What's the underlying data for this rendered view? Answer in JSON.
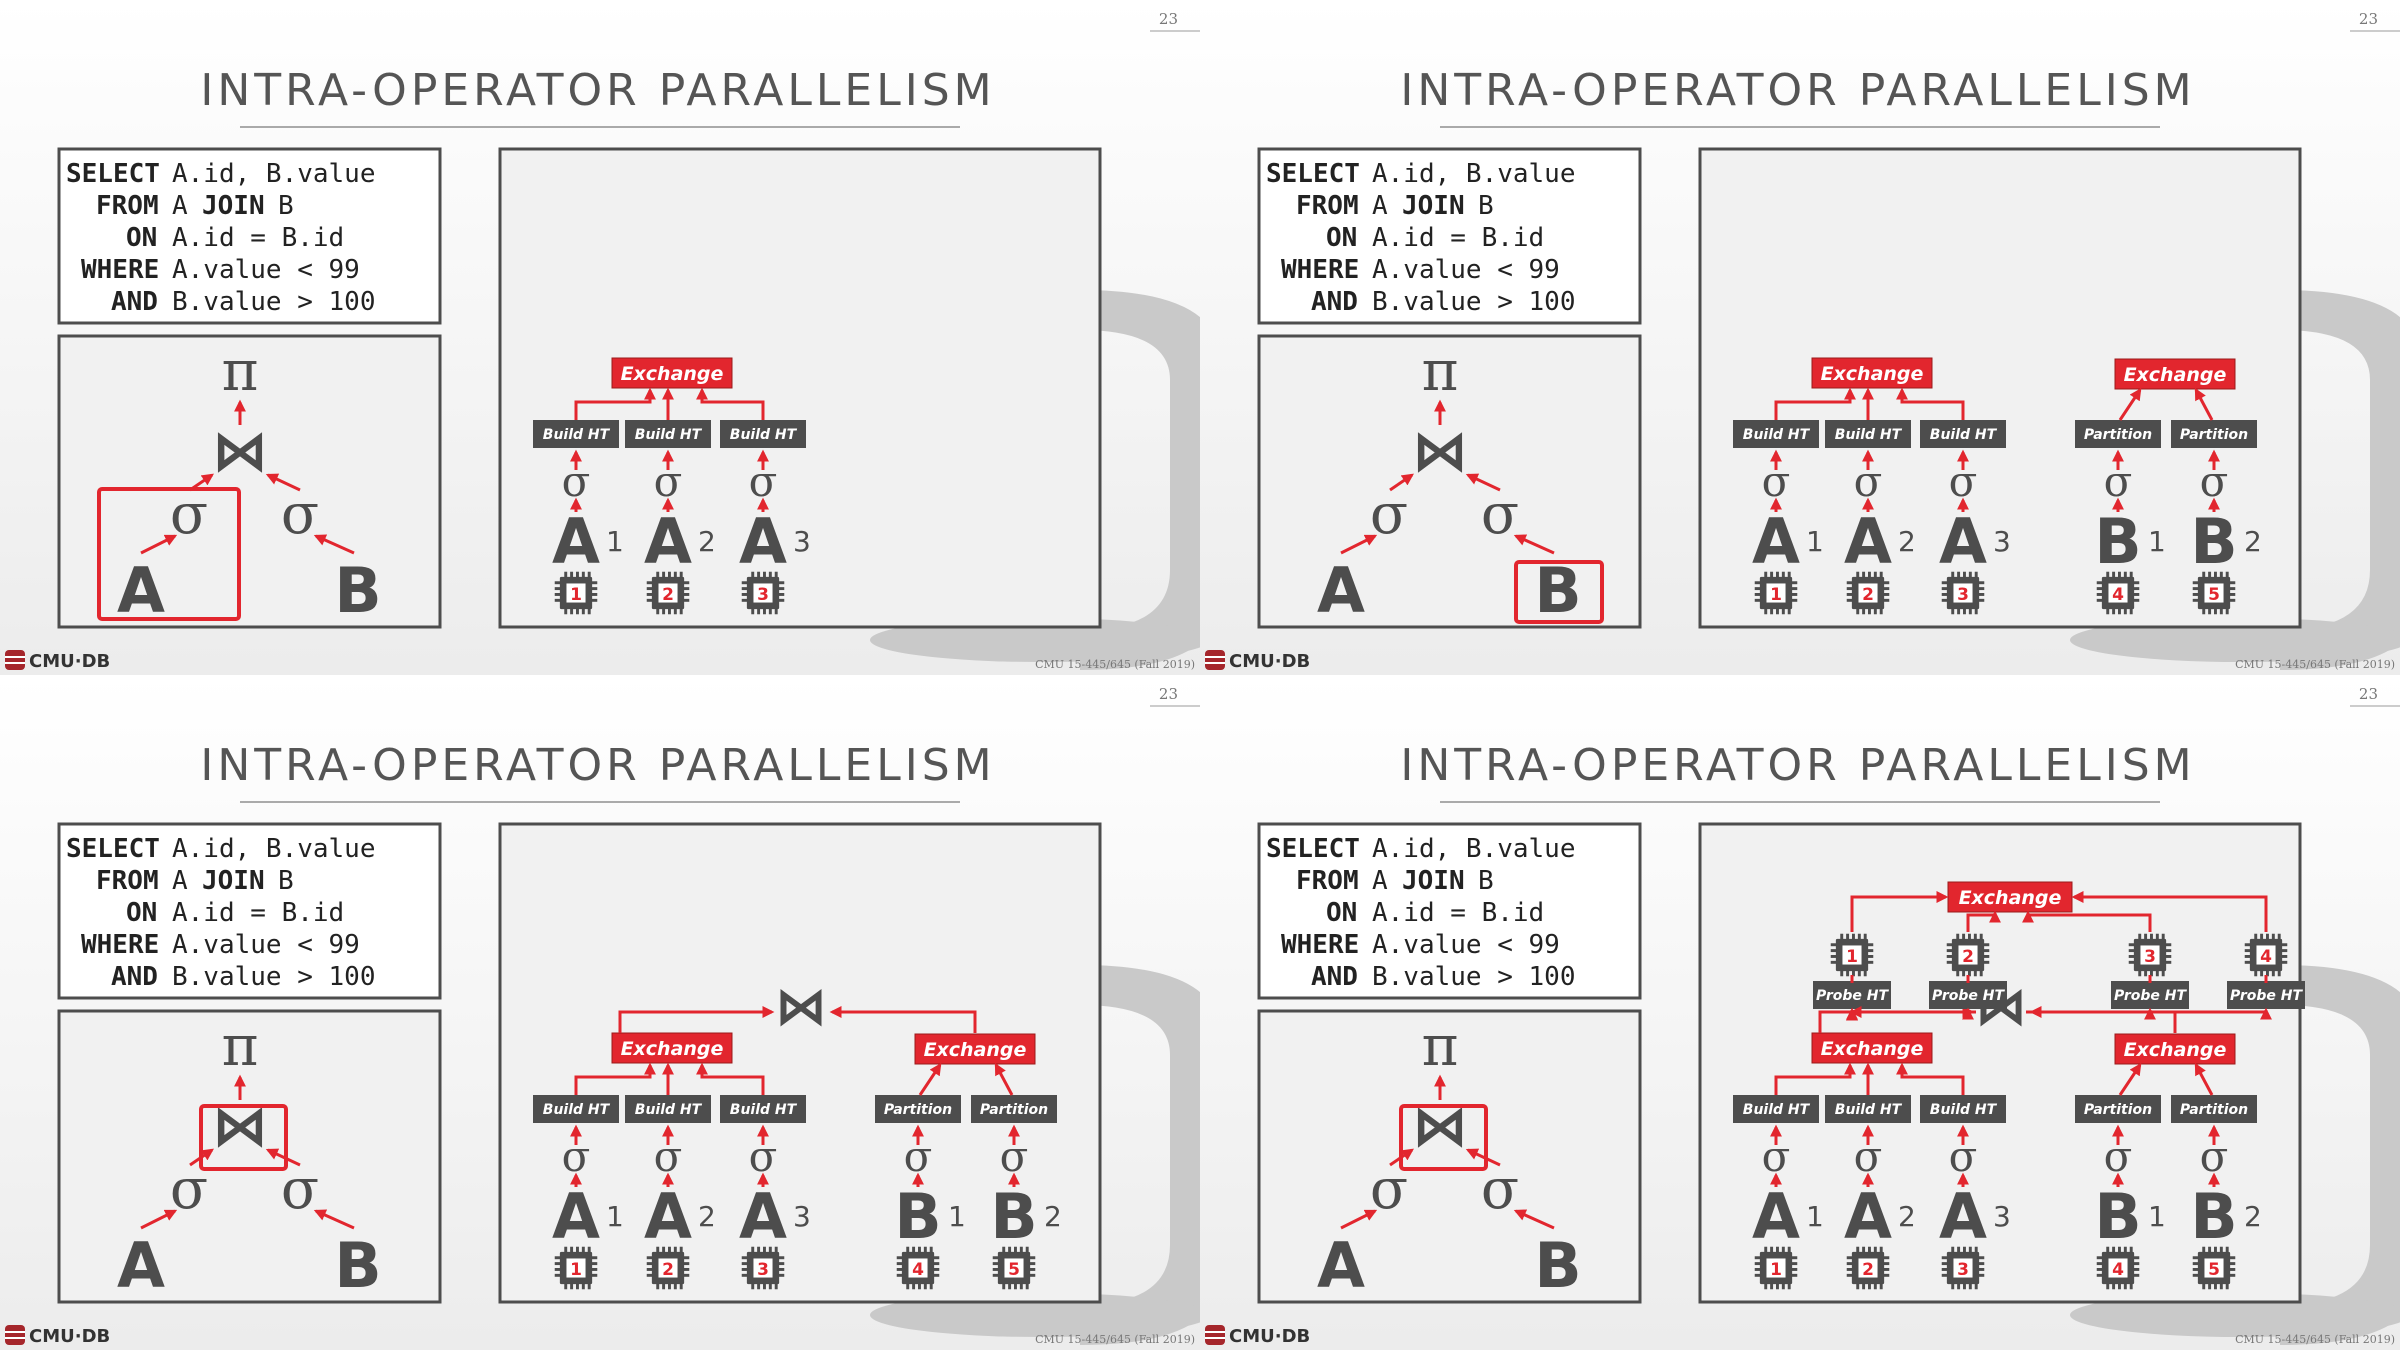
{
  "slide": {
    "page_number": "23",
    "title": "INTRA-OPERATOR PARALLELISM",
    "logo_text": "CMU·DB",
    "footer": "CMU 15-445/645 (Fall 2019)"
  },
  "sql": {
    "kw_select": "SELECT",
    "rest_select": "A.id, B.value",
    "kw_from": "FROM",
    "rest_from_a": "A",
    "kw_join": "JOIN",
    "rest_from_b": "B",
    "kw_on": "ON",
    "rest_on": "A.id = B.id",
    "kw_where": "WHERE",
    "rest_where": "A.value < 99",
    "kw_and": "AND",
    "rest_and": "B.value > 100"
  },
  "plan": {
    "projection": "π",
    "join": "⋈",
    "selection": "σ",
    "table_a": "A",
    "table_b": "B"
  },
  "labels": {
    "exchange": "Exchange",
    "build_ht": "Build HT",
    "partition": "Partition",
    "probe_ht": "Probe HT",
    "a1": "1",
    "a2": "2",
    "a3": "3",
    "b1": "1",
    "b2": "2",
    "cpu1": "1",
    "cpu2": "2",
    "cpu3": "3",
    "cpu4": "4",
    "cpu5": "5"
  },
  "colors": {
    "accent": "#e2262e",
    "dark": "#4d4d4d",
    "panel_bg": "#f1f1f1",
    "title": "#555555"
  }
}
